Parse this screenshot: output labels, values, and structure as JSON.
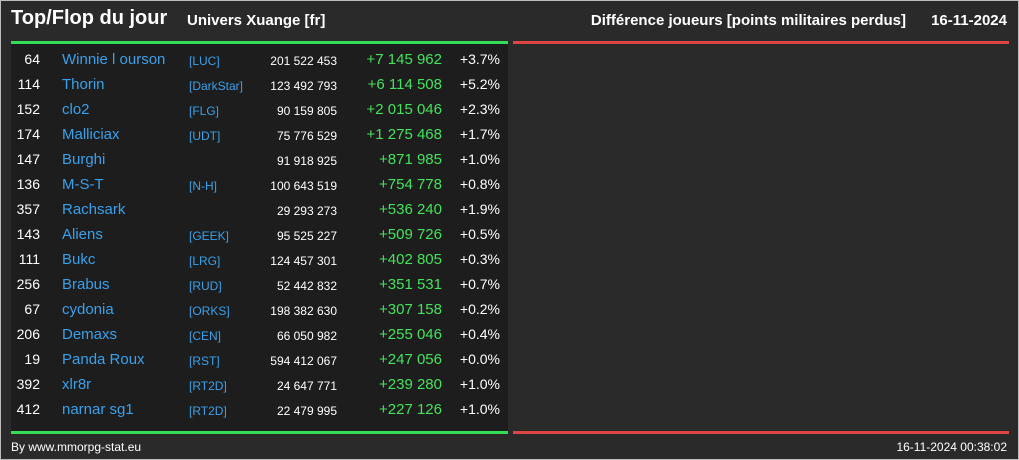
{
  "header": {
    "title": "Top/Flop du jour",
    "universe": "Univers Xuange [fr]",
    "metric": "Différence joueurs [points militaires perdus]",
    "date": "16-11-2024"
  },
  "colors": {
    "background": "#2a2a2a",
    "table_background": "#1d1d1d",
    "top_accent": "#33dd55",
    "flop_accent": "#dd4444",
    "name_link": "#3aa0ea",
    "positive_diff": "#44e25c"
  },
  "top_rows": [
    {
      "rank": "64",
      "name": "Winnie l ourson",
      "alliance": "[LUC]",
      "points": "201 522 453",
      "diff": "+7 145 962",
      "pct": "+3.7%"
    },
    {
      "rank": "114",
      "name": "Thorin",
      "alliance": "[DarkStar]",
      "points": "123 492 793",
      "diff": "+6 114 508",
      "pct": "+5.2%"
    },
    {
      "rank": "152",
      "name": "clo2",
      "alliance": "[FLG]",
      "points": "90 159 805",
      "diff": "+2 015 046",
      "pct": "+2.3%"
    },
    {
      "rank": "174",
      "name": "Malliciax",
      "alliance": "[UDT]",
      "points": "75 776 529",
      "diff": "+1 275 468",
      "pct": "+1.7%"
    },
    {
      "rank": "147",
      "name": "Burghi",
      "alliance": "",
      "points": "91 918 925",
      "diff": "+871 985",
      "pct": "+1.0%"
    },
    {
      "rank": "136",
      "name": "M-S-T",
      "alliance": "[N-H]",
      "points": "100 643 519",
      "diff": "+754 778",
      "pct": "+0.8%"
    },
    {
      "rank": "357",
      "name": "Rachsark",
      "alliance": "",
      "points": "29 293 273",
      "diff": "+536 240",
      "pct": "+1.9%"
    },
    {
      "rank": "143",
      "name": "Aliens",
      "alliance": "[GEEK]",
      "points": "95 525 227",
      "diff": "+509 726",
      "pct": "+0.5%"
    },
    {
      "rank": "111",
      "name": "Bukc",
      "alliance": "[LRG]",
      "points": "124 457 301",
      "diff": "+402 805",
      "pct": "+0.3%"
    },
    {
      "rank": "256",
      "name": "Brabus",
      "alliance": "[RUD]",
      "points": "52 442 832",
      "diff": "+351 531",
      "pct": "+0.7%"
    },
    {
      "rank": "67",
      "name": "cydonia",
      "alliance": "[ORKS]",
      "points": "198 382 630",
      "diff": "+307 158",
      "pct": "+0.2%"
    },
    {
      "rank": "206",
      "name": "Demaxs",
      "alliance": "[CEN]",
      "points": "66 050 982",
      "diff": "+255 046",
      "pct": "+0.4%"
    },
    {
      "rank": "19",
      "name": "Panda Roux",
      "alliance": "[RST]",
      "points": "594 412 067",
      "diff": "+247 056",
      "pct": "+0.0%"
    },
    {
      "rank": "392",
      "name": "xlr8r",
      "alliance": "[RT2D]",
      "points": "24 647 771",
      "diff": "+239 280",
      "pct": "+1.0%"
    },
    {
      "rank": "412",
      "name": "narnar sg1",
      "alliance": "[RT2D]",
      "points": "22 479 995",
      "diff": "+227 126",
      "pct": "+1.0%"
    }
  ],
  "footer": {
    "credit": "By www.mmorpg-stat.eu",
    "timestamp": "16-11-2024 00:38:02"
  }
}
